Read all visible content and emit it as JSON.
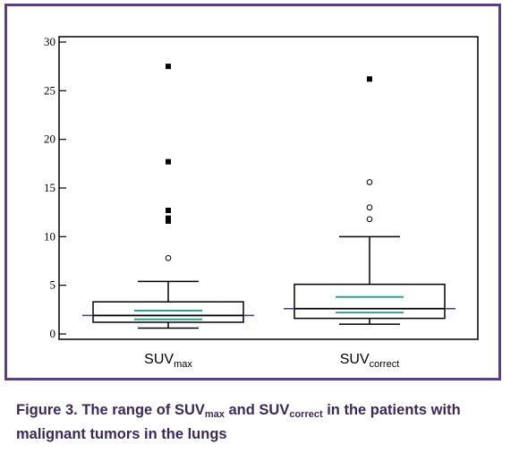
{
  "chart_data": {
    "type": "box",
    "ylim": [
      0,
      30
    ],
    "yticks": [
      0,
      5,
      10,
      15,
      20,
      25,
      30
    ],
    "grid": false,
    "categories": [
      {
        "label_main": "SUV",
        "label_sub": "max"
      },
      {
        "label_main": "SUV",
        "label_sub": "correct"
      }
    ],
    "boxes": [
      {
        "whisker_low": 0.6,
        "q1": 1.2,
        "median": 1.9,
        "q3": 3.3,
        "whisker_high": 5.4,
        "mean": 1.9,
        "ci_low": 1.5,
        "ci_high": 2.4,
        "outliers": [
          7.8
        ],
        "far_outliers": [
          11.6,
          11.9,
          12.7,
          17.7,
          27.5
        ]
      },
      {
        "whisker_low": 1.0,
        "q1": 1.6,
        "median": 2.6,
        "q3": 5.1,
        "whisker_high": 10.0,
        "mean": 2.6,
        "ci_low": 2.2,
        "ci_high": 3.8,
        "outliers": [
          11.8,
          13.0,
          15.6
        ],
        "far_outliers": [
          26.2
        ]
      }
    ],
    "colors": {
      "frame": "#5b3f8f",
      "box": "#000000",
      "mean_line": "#3d3d9e",
      "ci_line": "#1f9b8a"
    }
  },
  "caption": {
    "prefix": "Figure 3. The range of SUV",
    "sub1": "max",
    "mid": " and SUV",
    "sub2": "correct",
    "suffix": " in the patients with malignant tumors in the lungs"
  }
}
